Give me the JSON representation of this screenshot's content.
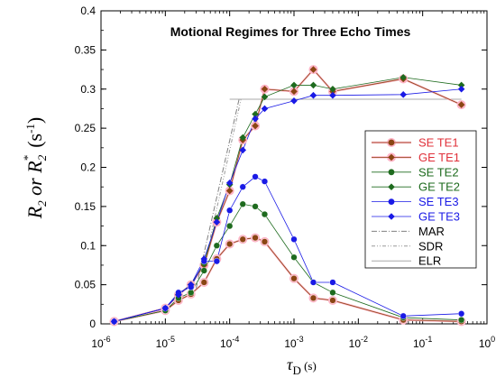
{
  "chart_data": {
    "type": "scatter",
    "title": "Motional Regimes for Three Echo Times",
    "xscale": "log",
    "xlim": [
      1e-06,
      1
    ],
    "ylim": [
      0,
      0.4
    ],
    "xticks": [
      {
        "value": 1e-06,
        "base": "10",
        "exp": "-6"
      },
      {
        "value": 1e-05,
        "base": "10",
        "exp": "-5"
      },
      {
        "value": 0.0001,
        "base": "10",
        "exp": "-4"
      },
      {
        "value": 0.001,
        "base": "10",
        "exp": "-3"
      },
      {
        "value": 0.01,
        "base": "10",
        "exp": "-2"
      },
      {
        "value": 0.1,
        "base": "10",
        "exp": "-1"
      },
      {
        "value": 1,
        "base": "10",
        "exp": "0"
      }
    ],
    "yticks": [
      {
        "value": 0,
        "label": "0"
      },
      {
        "value": 0.05,
        "label": "0.05"
      },
      {
        "value": 0.1,
        "label": "0.1"
      },
      {
        "value": 0.15,
        "label": "0.15"
      },
      {
        "value": 0.2,
        "label": "0.2"
      },
      {
        "value": 0.25,
        "label": "0.25"
      },
      {
        "value": 0.3,
        "label": "0.3"
      },
      {
        "value": 0.35,
        "label": "0.35"
      },
      {
        "value": 0.4,
        "label": "0.4"
      }
    ],
    "ylabel": {
      "main": "R",
      "sub1": "2",
      "or": " or ",
      "sub2": "2",
      "sup": "*",
      "unit": " (s",
      "unit_exp": "-1",
      "unit_close": ")"
    },
    "xlabel": {
      "main": "τ",
      "sub": "D",
      "unit": " (s)"
    },
    "legend_position": "right",
    "series": [
      {
        "name": "SE TE1",
        "color": "#8B4513",
        "marker": "circle",
        "halo": "#ffb3c6",
        "x": [
          1.6e-06,
          1e-05,
          1.6e-05,
          2.5e-05,
          4e-05,
          6.3e-05,
          0.0001,
          0.00016,
          0.00025,
          0.00035,
          0.001,
          0.002,
          0.004,
          0.05,
          0.4
        ],
        "y": [
          0.003,
          0.017,
          0.03,
          0.038,
          0.053,
          0.083,
          0.102,
          0.108,
          0.11,
          0.105,
          0.058,
          0.033,
          0.03,
          0.005,
          0.003
        ]
      },
      {
        "name": "GE TE1",
        "color": "#8B4513",
        "marker": "diamond",
        "halo": "#ffb3c6",
        "x": [
          1.6e-06,
          1e-05,
          1.6e-05,
          2.5e-05,
          4e-05,
          6.3e-05,
          0.0001,
          0.00016,
          0.00025,
          0.00035,
          0.001,
          0.002,
          0.004,
          0.05,
          0.4
        ],
        "y": [
          0.003,
          0.02,
          0.037,
          0.05,
          0.075,
          0.13,
          0.17,
          0.235,
          0.253,
          0.3,
          0.297,
          0.325,
          0.297,
          0.313,
          0.28
        ]
      },
      {
        "name": "SE TE2",
        "color": "#1e6b1e",
        "marker": "circle",
        "halo": "none",
        "x": [
          1.6e-06,
          1e-05,
          1.6e-05,
          2.5e-05,
          4e-05,
          6.3e-05,
          0.0001,
          0.00016,
          0.00025,
          0.00035,
          0.001,
          0.002,
          0.004,
          0.05,
          0.4
        ],
        "y": [
          0.003,
          0.017,
          0.033,
          0.04,
          0.068,
          0.1,
          0.125,
          0.153,
          0.15,
          0.14,
          0.085,
          0.053,
          0.04,
          0.008,
          0.005
        ]
      },
      {
        "name": "GE TE2",
        "color": "#1e6b1e",
        "marker": "diamond",
        "halo": "none",
        "x": [
          1.6e-06,
          1e-05,
          1.6e-05,
          2.5e-05,
          4e-05,
          6.3e-05,
          0.0001,
          0.00016,
          0.00025,
          0.00035,
          0.001,
          0.002,
          0.004,
          0.05,
          0.4
        ],
        "y": [
          0.003,
          0.02,
          0.038,
          0.05,
          0.077,
          0.135,
          0.178,
          0.238,
          0.268,
          0.29,
          0.305,
          0.305,
          0.3,
          0.315,
          0.305
        ]
      },
      {
        "name": "SE TE3",
        "color": "#1a1ae6",
        "marker": "circle",
        "halo": "none",
        "x": [
          1.6e-06,
          1e-05,
          1.6e-05,
          2.5e-05,
          4e-05,
          6.3e-05,
          0.0001,
          0.00016,
          0.00025,
          0.00035,
          0.001,
          0.002,
          0.004,
          0.05,
          0.4
        ],
        "y": [
          0.003,
          0.02,
          0.04,
          0.047,
          0.08,
          0.08,
          0.145,
          0.175,
          0.188,
          0.182,
          0.108,
          0.053,
          0.053,
          0.01,
          0.013
        ]
      },
      {
        "name": "GE TE3",
        "color": "#1a1ae6",
        "marker": "diamond",
        "halo": "none",
        "x": [
          1.6e-06,
          1e-05,
          1.6e-05,
          2.5e-05,
          4e-05,
          6.3e-05,
          0.0001,
          0.00016,
          0.00025,
          0.00035,
          0.001,
          0.002,
          0.004,
          0.05,
          0.4
        ],
        "y": [
          0.003,
          0.02,
          0.037,
          0.05,
          0.083,
          0.13,
          0.18,
          0.222,
          0.262,
          0.275,
          0.285,
          0.292,
          0.292,
          0.293,
          0.3
        ]
      }
    ],
    "reference_lines": [
      {
        "name": "MAR",
        "color": "#808080",
        "dash": "6,2,1,2",
        "x": [
          3e-05,
          0.00014
        ],
        "y": [
          0.045,
          0.287
        ]
      },
      {
        "name": "SDR",
        "color": "#9a9a9a",
        "dash": "4,2,1,2,1,2",
        "x": [
          5e-05,
          0.00015,
          0.4
        ],
        "y": [
          0.11,
          0.287,
          0.287
        ]
      },
      {
        "name": "ELR",
        "color": "#a8a8a8",
        "dash": "",
        "x": [
          0.0001,
          0.4
        ],
        "y": [
          0.287,
          0.287
        ]
      }
    ]
  }
}
